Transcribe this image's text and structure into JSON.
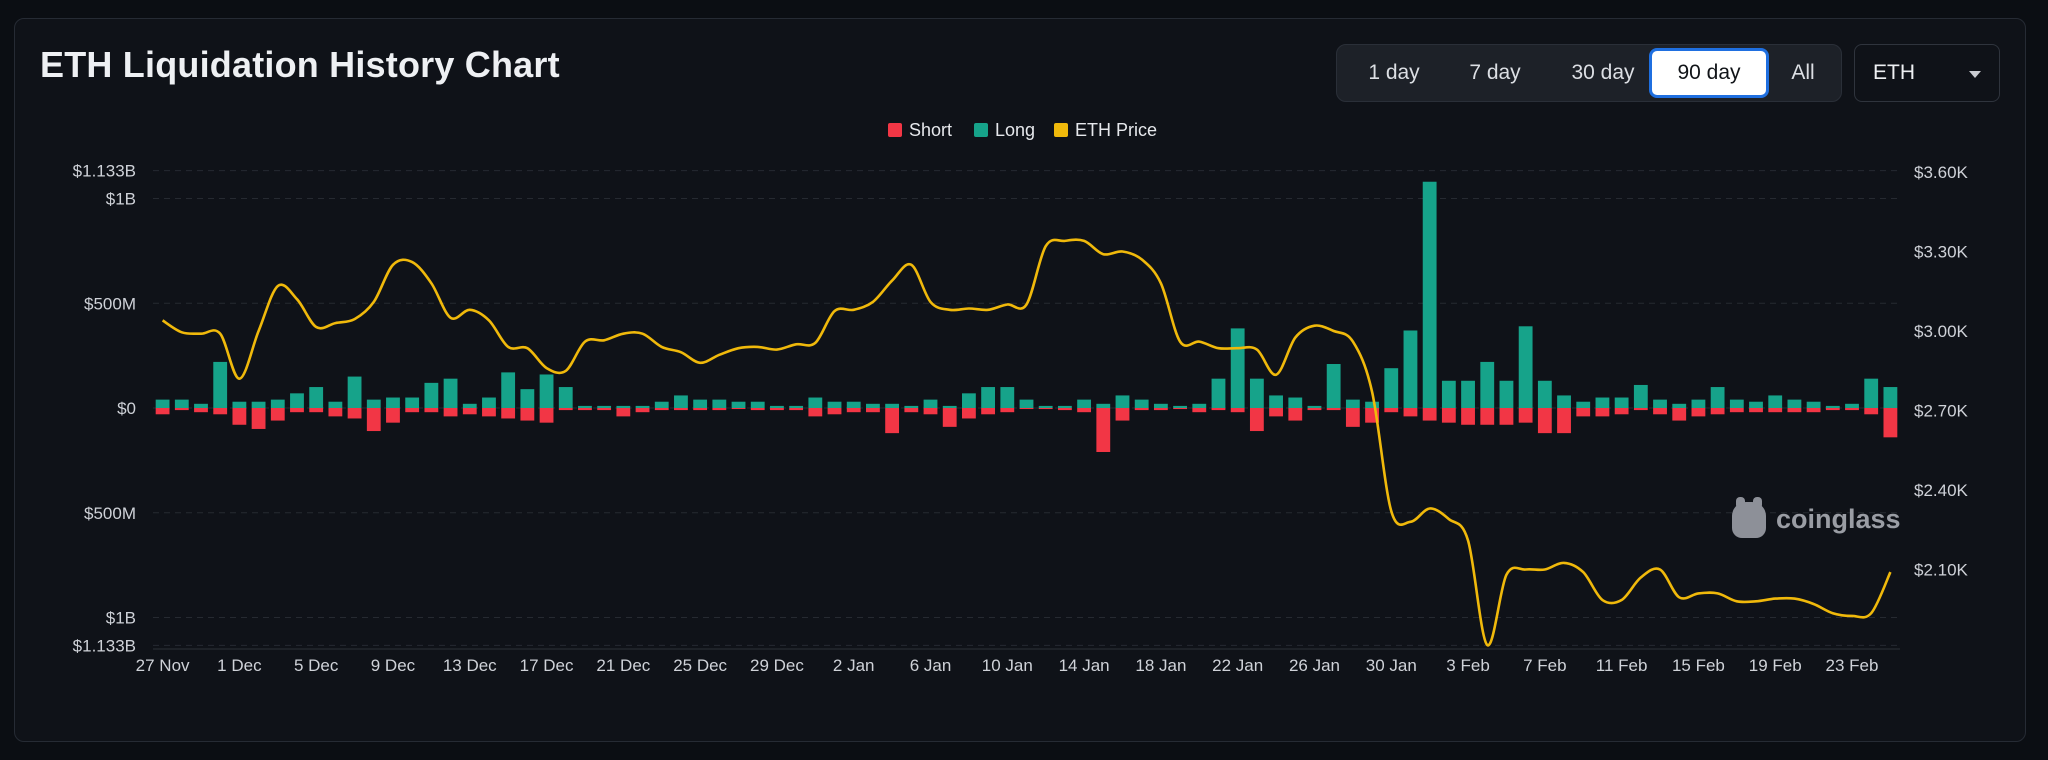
{
  "header": {
    "title": "ETH Liquidation History Chart"
  },
  "range_tabs": [
    {
      "label": "1 day",
      "active": false
    },
    {
      "label": "7 day",
      "active": false
    },
    {
      "label": "30 day",
      "active": false
    },
    {
      "label": "90 day",
      "active": true
    },
    {
      "label": "All",
      "active": false
    }
  ],
  "symbol_select": {
    "value": "ETH"
  },
  "legend": [
    {
      "label": "Short",
      "color": "#f23645"
    },
    {
      "label": "Long",
      "color": "#16a38a"
    },
    {
      "label": "ETH Price",
      "color": "#f0b90b"
    }
  ],
  "watermark": {
    "text": "coinglass"
  },
  "chart_data": {
    "type": "bar",
    "x_tick_labels": [
      "27 Nov",
      "1 Dec",
      "5 Dec",
      "9 Dec",
      "13 Dec",
      "17 Dec",
      "21 Dec",
      "25 Dec",
      "29 Dec",
      "2 Jan",
      "6 Jan",
      "10 Jan",
      "14 Jan",
      "18 Jan",
      "22 Jan",
      "26 Jan",
      "30 Jan",
      "3 Feb",
      "7 Feb",
      "11 Feb",
      "15 Feb",
      "19 Feb",
      "23 Feb"
    ],
    "x_tick_start_index": 0,
    "x_tick_step": 4,
    "left_axis": {
      "ticks": [
        1.133,
        1.0,
        0.5,
        0,
        -0.5,
        -1.0,
        -1.133
      ],
      "tick_labels": [
        "$1.133B",
        "$1B",
        "$500M",
        "$0",
        "$500M",
        "$1B",
        "$1.133B"
      ],
      "range": [
        -1.133,
        1.133
      ],
      "unit": "B USD"
    },
    "right_axis": {
      "ticks": [
        3600,
        3300,
        3000,
        2700,
        2400,
        2100
      ],
      "tick_labels": [
        "$3.60K",
        "$3.30K",
        "$3.00K",
        "$2.70K",
        "$2.40K",
        "$2.10K"
      ],
      "range": [
        1800,
        3600
      ]
    },
    "grid": true,
    "series": [
      {
        "name": "Long",
        "kind": "bar",
        "color": "#16a38a",
        "values": [
          0.04,
          0.04,
          0.02,
          0.22,
          0.03,
          0.03,
          0.04,
          0.07,
          0.1,
          0.03,
          0.15,
          0.04,
          0.05,
          0.05,
          0.12,
          0.14,
          0.02,
          0.05,
          0.17,
          0.09,
          0.16,
          0.1,
          0.01,
          0.01,
          0.01,
          0.01,
          0.03,
          0.06,
          0.04,
          0.04,
          0.03,
          0.03,
          0.01,
          0.01,
          0.05,
          0.03,
          0.03,
          0.02,
          0.02,
          0.01,
          0.04,
          0.01,
          0.07,
          0.1,
          0.1,
          0.04,
          0.01,
          0.01,
          0.04,
          0.02,
          0.06,
          0.04,
          0.02,
          0.01,
          0.02,
          0.14,
          0.38,
          0.14,
          0.06,
          0.05,
          0.01,
          0.21,
          0.04,
          0.03,
          0.19,
          0.37,
          1.08,
          0.13,
          0.13,
          0.22,
          0.13,
          0.39,
          0.13,
          0.06,
          0.03,
          0.05,
          0.05,
          0.11,
          0.04,
          0.02,
          0.04,
          0.1,
          0.04,
          0.03,
          0.06,
          0.04,
          0.03,
          0.01,
          0.02,
          0.14,
          0.1
        ]
      },
      {
        "name": "Short",
        "kind": "bar",
        "color": "#f23645",
        "values": [
          0.03,
          0.01,
          0.02,
          0.03,
          0.08,
          0.1,
          0.06,
          0.02,
          0.02,
          0.04,
          0.05,
          0.11,
          0.07,
          0.02,
          0.02,
          0.04,
          0.03,
          0.04,
          0.05,
          0.06,
          0.07,
          0.01,
          0.01,
          0.01,
          0.04,
          0.02,
          0.01,
          0.01,
          0.01,
          0.01,
          0.005,
          0.01,
          0.01,
          0.01,
          0.04,
          0.03,
          0.02,
          0.02,
          0.12,
          0.02,
          0.03,
          0.09,
          0.05,
          0.03,
          0.02,
          0.005,
          0.005,
          0.01,
          0.02,
          0.21,
          0.06,
          0.01,
          0.01,
          0.005,
          0.02,
          0.01,
          0.02,
          0.11,
          0.04,
          0.06,
          0.01,
          0.01,
          0.09,
          0.07,
          0.02,
          0.04,
          0.06,
          0.07,
          0.08,
          0.08,
          0.08,
          0.07,
          0.12,
          0.12,
          0.04,
          0.04,
          0.03,
          0.01,
          0.03,
          0.06,
          0.04,
          0.03,
          0.02,
          0.02,
          0.02,
          0.02,
          0.02,
          0.01,
          0.01,
          0.03,
          0.14
        ]
      },
      {
        "name": "ETH Price",
        "kind": "line",
        "color": "#f0b90b",
        "values": [
          3040,
          2995,
          2990,
          2990,
          2820,
          3000,
          3170,
          3120,
          3015,
          3030,
          3045,
          3110,
          3250,
          3260,
          3180,
          3050,
          3080,
          3040,
          2940,
          2935,
          2860,
          2850,
          2960,
          2965,
          2990,
          2990,
          2940,
          2920,
          2880,
          2910,
          2935,
          2940,
          2930,
          2950,
          2955,
          3075,
          3080,
          3110,
          3190,
          3250,
          3110,
          3080,
          3085,
          3080,
          3100,
          3100,
          3320,
          3340,
          3340,
          3290,
          3300,
          3270,
          3180,
          2960,
          2960,
          2935,
          2935,
          2930,
          2835,
          2975,
          3020,
          3000,
          2960,
          2770,
          2320,
          2280,
          2330,
          2290,
          2210,
          1815,
          2080,
          2100,
          2100,
          2125,
          2090,
          1985,
          1985,
          2070,
          2100,
          1995,
          2010,
          2010,
          1980,
          1980,
          1990,
          1990,
          1970,
          1935,
          1925,
          1935,
          2090
        ]
      }
    ],
    "bar_count": 91
  }
}
